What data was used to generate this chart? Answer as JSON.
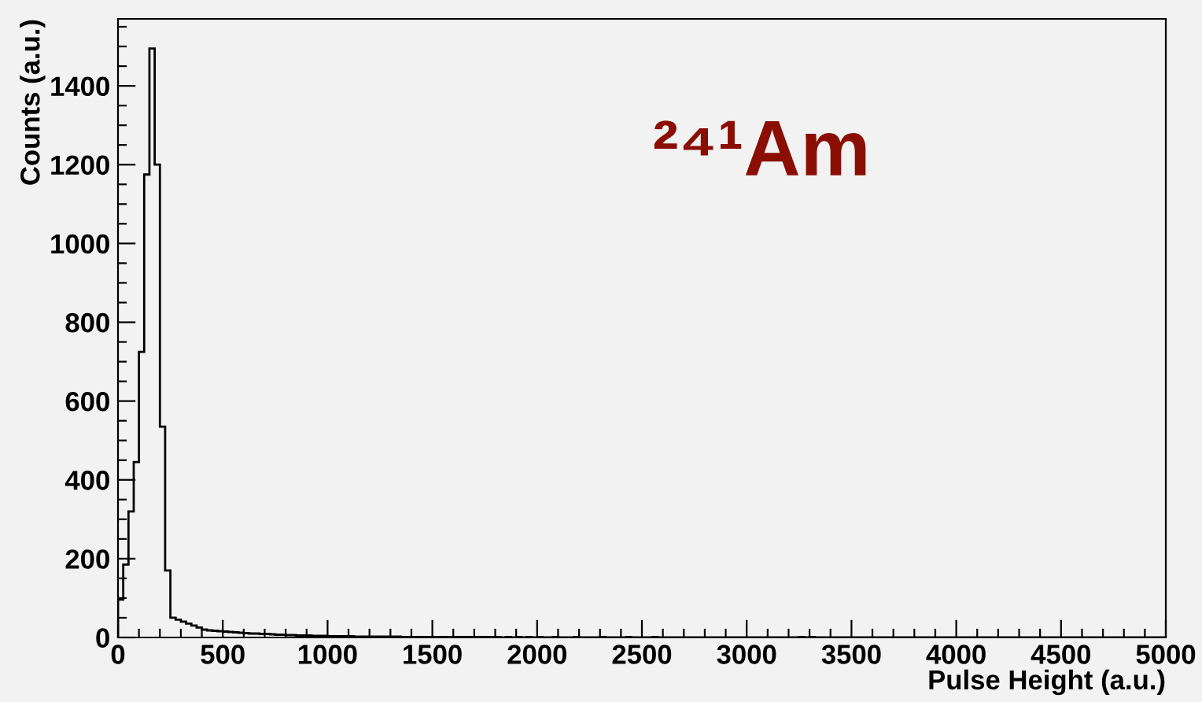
{
  "chart_data": {
    "type": "histogram",
    "xlabel": "Pulse Height (a.u.)",
    "ylabel": "Counts (a.u.)",
    "annotations": [
      "²⁴¹Am"
    ],
    "bins": [
      0,
      25,
      50,
      75,
      100,
      125,
      150,
      175,
      200,
      225,
      250,
      275,
      300,
      325,
      350,
      375,
      400,
      425,
      450,
      475,
      500,
      525,
      550,
      575,
      600,
      625,
      650,
      675,
      700,
      725,
      750,
      775,
      800,
      825,
      850,
      875,
      900,
      925,
      950,
      975,
      1000,
      1025,
      1050,
      1075,
      1100,
      1125,
      1150,
      1175,
      1200,
      1225,
      1250,
      1275,
      1300,
      1325,
      1350,
      1375,
      1400,
      1425,
      1450,
      1475,
      1500,
      1525,
      1550,
      1575,
      1600,
      1625,
      1650,
      1675,
      1700,
      1725,
      1750,
      1775,
      1800,
      1825,
      1850,
      1875,
      1900,
      1925,
      1950,
      1975,
      2000,
      2025,
      2050,
      2075,
      2100,
      2125,
      2150,
      2175,
      2200,
      2225,
      2250,
      2275,
      2300,
      2325,
      2350,
      2375,
      2400,
      2425,
      2450,
      2475,
      2500,
      2525,
      2550,
      2575,
      2600,
      2625,
      2650,
      2675,
      2700,
      2725,
      2750,
      2775,
      2800,
      2825,
      2850,
      2875,
      2900,
      2925,
      2950,
      2975,
      3000,
      3025,
      3050,
      3075,
      3100,
      3125,
      3150,
      3175,
      3200,
      3225,
      3250,
      3275,
      3300,
      3325,
      3350,
      3375,
      3400,
      3425,
      3450,
      3475,
      3500,
      3525,
      3550,
      3575,
      3600,
      3625,
      3650,
      3675,
      3700,
      3725,
      3750,
      3775,
      3800,
      3825,
      3850,
      3875,
      3900,
      3925,
      3950,
      3975,
      4000,
      4025,
      4050,
      4075,
      4100,
      4125,
      4150,
      4175,
      4200,
      4225,
      4250,
      4275,
      4300,
      4325,
      4350,
      4375,
      4400,
      4425,
      4450,
      4475,
      4500,
      4525,
      4550,
      4575,
      4600,
      4625,
      4650,
      4675,
      4700,
      4725,
      4750,
      4775,
      4800,
      4825,
      4850,
      4875,
      4900,
      4925,
      4950,
      4975,
      5000
    ],
    "values": [
      96,
      185,
      320,
      445,
      725,
      1175,
      1495,
      1200,
      535,
      170,
      50,
      45,
      40,
      35,
      30,
      25,
      20,
      18,
      17,
      16,
      15,
      14,
      13,
      12,
      11,
      10,
      10,
      9,
      9,
      8,
      7,
      7,
      6,
      6,
      5,
      5,
      5,
      4,
      4,
      4,
      3,
      3,
      3,
      3,
      3,
      2,
      2,
      2,
      2,
      2,
      2,
      2,
      2,
      2,
      1,
      1,
      1,
      1,
      1,
      1,
      1,
      1,
      1,
      1,
      1,
      1,
      1,
      1,
      1,
      1,
      1,
      1,
      1,
      0,
      1,
      0,
      1,
      0,
      1,
      0,
      1,
      0,
      0,
      1,
      0,
      0,
      0,
      1,
      0,
      0,
      0,
      0,
      1,
      0,
      0,
      0,
      0,
      1,
      0,
      0,
      0,
      0,
      1,
      0,
      0,
      0,
      0,
      0,
      0,
      0,
      0,
      0,
      0,
      0,
      0,
      0,
      0,
      0,
      0,
      0,
      0,
      0,
      0,
      0,
      0,
      0,
      0,
      0,
      0,
      0,
      1,
      0,
      1,
      0,
      0,
      0,
      0,
      0,
      0,
      0,
      0,
      0,
      0,
      0,
      0,
      0,
      0,
      0,
      0,
      0,
      0,
      0,
      0,
      0,
      0,
      0,
      0,
      0,
      0,
      0,
      0,
      0,
      0,
      0,
      0,
      0,
      0,
      0,
      0,
      0,
      0,
      0,
      0,
      0,
      0,
      0,
      0,
      0,
      0,
      0,
      0,
      0,
      0,
      0,
      0,
      0,
      0,
      0,
      0,
      0,
      0,
      0,
      0,
      0,
      0,
      0,
      0,
      0,
      0,
      0
    ],
    "color": "#000000",
    "xlim": [
      0,
      5000
    ],
    "ylim": [
      0,
      1570
    ],
    "xticks": [
      0,
      500,
      1000,
      1500,
      2000,
      2500,
      3000,
      3500,
      4000,
      4500,
      5000
    ],
    "yticks": [
      0,
      200,
      400,
      600,
      800,
      1000,
      1200,
      1400
    ],
    "grid": false
  }
}
